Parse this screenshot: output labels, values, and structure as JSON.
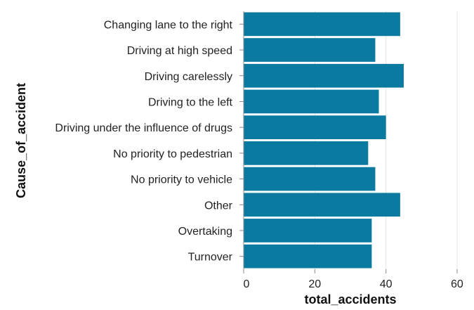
{
  "chart_data": {
    "type": "bar",
    "orientation": "horizontal",
    "categories": [
      "Changing lane to the right",
      "Driving at high speed",
      "Driving carelessly",
      "Driving to the left",
      "Driving under the influence of drugs",
      "No priority to pedestrian",
      "No priority to vehicle",
      "Other",
      "Overtaking",
      "Turnover"
    ],
    "values": [
      44,
      37,
      45,
      38,
      40,
      35,
      37,
      44,
      36,
      36
    ],
    "xlabel": "total_accidents",
    "ylabel": "Cause_of_accident",
    "xlim": [
      0,
      61
    ],
    "xticks": [
      0,
      20,
      40,
      60
    ],
    "grid": "vertical",
    "bar_color": "#0a7aa0"
  }
}
